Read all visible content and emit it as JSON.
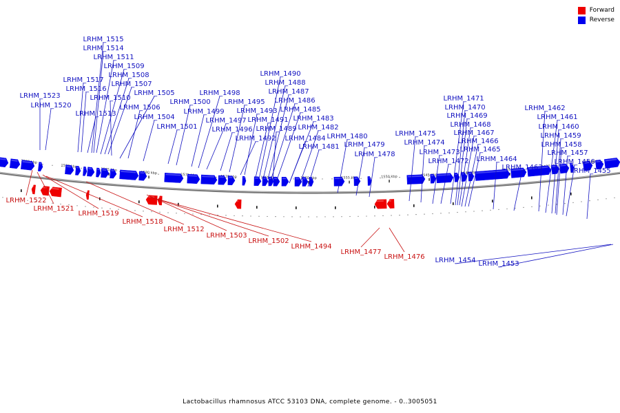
{
  "legend": {
    "forward_label": "Forward",
    "reverse_label": "Reverse",
    "forward_color": "#ee0000",
    "reverse_color": "#0000ee"
  },
  "caption": "Lactobacillus rhamnosus ATCC 53103 DNA, complete genome. - 0..3005051",
  "genome_range": {
    "start_kbp": 1525,
    "end_kbp": 1595
  },
  "ticks": [
    "1595 kbp",
    "1590 kbp",
    "1585 kbp",
    "1580 kbp",
    "1575 kbp",
    "1570 kbp",
    "1565 kbp",
    "1560 kbp",
    "1555 kbp",
    "1550 kbp",
    "1545 kbp",
    "1540 kbp",
    "1535 kbp",
    "1530 kbp",
    "1525 kbp"
  ],
  "genes_reverse": [
    "LRHM_1515",
    "LRHM_1514",
    "LRHM_1511",
    "LRHM_1509",
    "LRHM_1508",
    "LRHM_1507",
    "LRHM_1517",
    "LRHM_1516",
    "LRHM_1510",
    "LRHM_1513",
    "LRHM_1523",
    "LRHM_1520",
    "LRHM_1506",
    "LRHM_1505",
    "LRHM_1504",
    "LRHM_1501",
    "LRHM_1500",
    "LRHM_1499",
    "LRHM_1498",
    "LRHM_1497",
    "LRHM_1496",
    "LRHM_1495",
    "LRHM_1493",
    "LRHM_1492",
    "LRHM_1491",
    "LRHM_1490",
    "LRHM_1488",
    "LRHM_1487",
    "LRHM_1486",
    "LRHM_1485",
    "LRHM_1489",
    "LRHM_1483",
    "LRHM_1482",
    "LRHM_1484",
    "LRHM_1481",
    "LRHM_1480",
    "LRHM_1479",
    "LRHM_1478",
    "LRHM_1475",
    "LRHM_1474",
    "LRHM_1473",
    "LRHM_1472",
    "LRHM_1471",
    "LRHM_1470",
    "LRHM_1469",
    "LRHM_1468",
    "LRHM_1467",
    "LRHM_1466",
    "LRHM_1465",
    "LRHM_1464",
    "LRHM_1463",
    "LRHM_1462",
    "LRHM_1461",
    "LRHM_1460",
    "LRHM_1459",
    "LRHM_1458",
    "LRHM_1457",
    "LRHM_1456",
    "LRHM_1455",
    "LRHM_1454",
    "LRHM_1453"
  ],
  "genes_forward": [
    "LRHM_1522",
    "LRHM_1521",
    "LRHM_1519",
    "LRHM_1518",
    "LRHM_1512",
    "LRHM_1503",
    "LRHM_1502",
    "LRHM_1494",
    "LRHM_1477",
    "LRHM_1476"
  ]
}
